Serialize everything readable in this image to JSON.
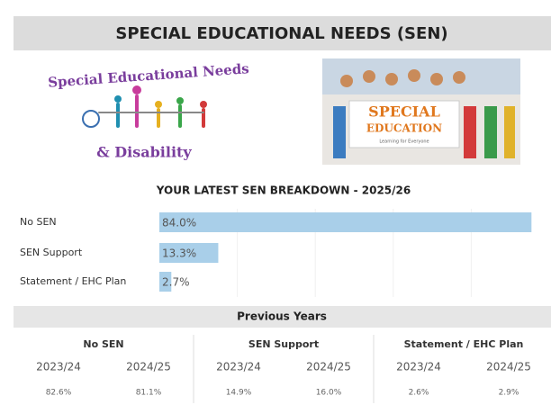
{
  "header": {
    "title": "SPECIAL EDUCATIONAL NEEDS (SEN)"
  },
  "images": [
    {
      "lines": [
        "Special Educational Needs",
        "& Disability"
      ]
    },
    {
      "lines": [
        "SPECIAL",
        "EDUCATION",
        "Learning for Everyone"
      ]
    }
  ],
  "chart_data": {
    "type": "bar",
    "orientation": "horizontal",
    "title": "YOUR LATEST SEN BREAKDOWN - 2025/26",
    "categories": [
      "No SEN",
      "SEN Support",
      "Statement / EHC Plan"
    ],
    "values": [
      84.0,
      13.3,
      2.7
    ],
    "value_labels": [
      "84.0%",
      "13.3%",
      "2.7%"
    ],
    "color": "#a9cfe9",
    "xlim": [
      0,
      88
    ]
  },
  "previous_years": {
    "title": "Previous Years",
    "groups": [
      {
        "name": "No SEN",
        "years": [
          "2023/24",
          "2024/25"
        ],
        "values": [
          "82.6%",
          "81.1%"
        ]
      },
      {
        "name": "SEN Support",
        "years": [
          "2023/24",
          "2024/25"
        ],
        "values": [
          "14.9%",
          "16.0%"
        ]
      },
      {
        "name": "Statement / EHC Plan",
        "years": [
          "2023/24",
          "2024/25"
        ],
        "values": [
          "2.6%",
          "2.9%"
        ]
      }
    ]
  }
}
